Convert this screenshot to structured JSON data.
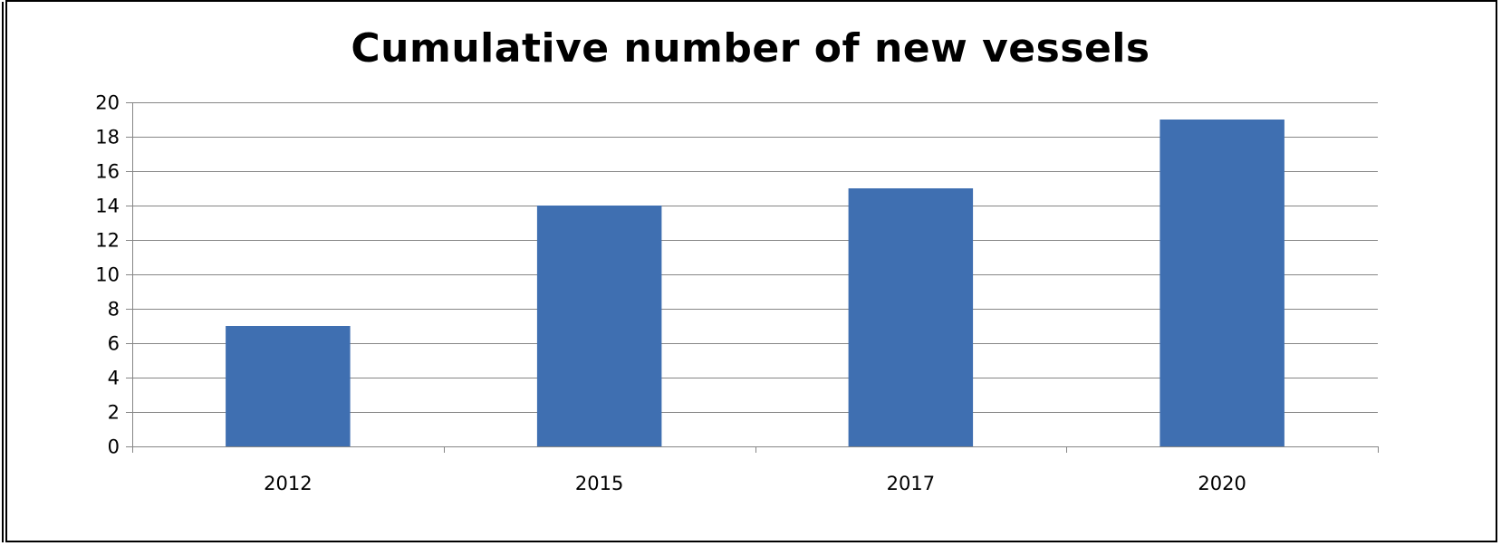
{
  "chart_data": {
    "type": "bar",
    "title": "Cumulative number of new vessels",
    "xlabel": "",
    "ylabel": "",
    "categories": [
      "2012",
      "2015",
      "2017",
      "2020"
    ],
    "values": [
      7,
      14,
      15,
      19
    ],
    "ylim": [
      0,
      20
    ],
    "yticks": [
      0,
      2,
      4,
      6,
      8,
      10,
      12,
      14,
      16,
      18,
      20
    ],
    "grid": true,
    "legend": "none",
    "bar_color": "#3F6FB1"
  }
}
